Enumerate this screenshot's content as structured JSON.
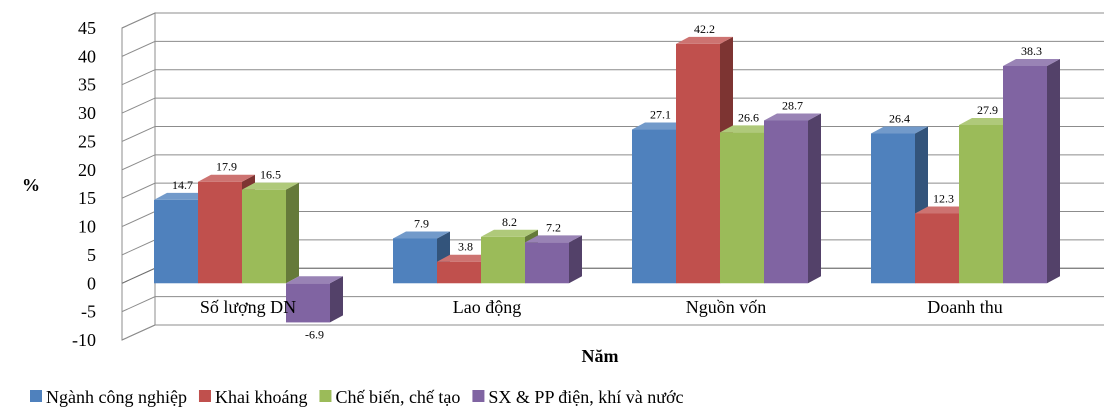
{
  "chart_data": {
    "type": "bar",
    "title": "",
    "xlabel": "Năm",
    "ylabel": "%",
    "ylim": [
      -10,
      45
    ],
    "yticks": [
      -10,
      -5,
      0,
      5,
      10,
      15,
      20,
      25,
      30,
      35,
      40,
      45
    ],
    "grid": true,
    "legend_position": "bottom",
    "categories": [
      "Số lượng DN",
      "Lao động",
      "Nguồn vốn",
      "Doanh thu"
    ],
    "series": [
      {
        "name": "Ngành công nghiệp",
        "color": "#4F81BD",
        "values": [
          14.7,
          7.9,
          27.1,
          26.4
        ]
      },
      {
        "name": "Khai khoáng",
        "color": "#C0504D",
        "values": [
          17.9,
          3.8,
          42.2,
          12.3
        ]
      },
      {
        "name": "Chế biến, chế tạo",
        "color": "#9BBB59",
        "values": [
          16.5,
          8.2,
          26.6,
          27.9
        ]
      },
      {
        "name": "SX & PP điện, khí và nước",
        "color": "#8064A2",
        "values": [
          -6.9,
          7.2,
          28.7,
          38.3
        ]
      }
    ]
  }
}
